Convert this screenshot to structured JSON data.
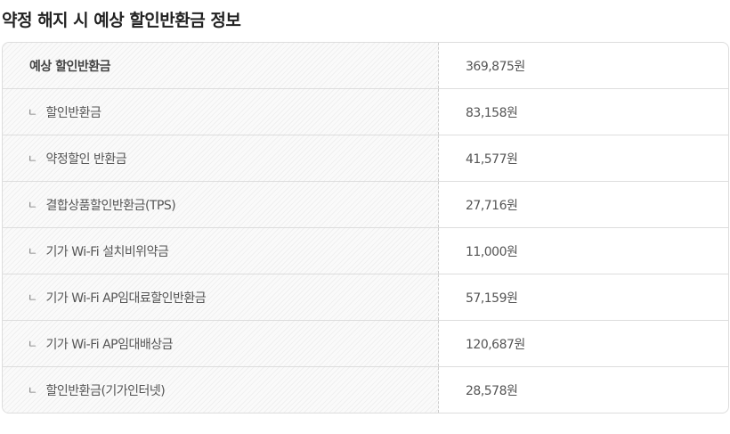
{
  "title": "약정 해지 시 예상 할인반환금 정보",
  "rows": [
    {
      "label": "예상 할인반환금",
      "value": "369,875원",
      "main": true
    },
    {
      "label": "할인반환금",
      "value": "83,158원"
    },
    {
      "label": "약정할인 반환금",
      "value": "41,577원"
    },
    {
      "label": "결합상품할인반환금(TPS)",
      "value": "27,716원"
    },
    {
      "label": "기가 Wi-Fi 설치비위약금",
      "value": "11,000원"
    },
    {
      "label": "기가 Wi-Fi AP임대료할인반환금",
      "value": "57,159원"
    },
    {
      "label": "기가 Wi-Fi AP임대배상금",
      "value": "120,687원"
    },
    {
      "label": "할인반환금(기가인터넷)",
      "value": "28,578원"
    }
  ],
  "sub_marker": "ㄴ"
}
